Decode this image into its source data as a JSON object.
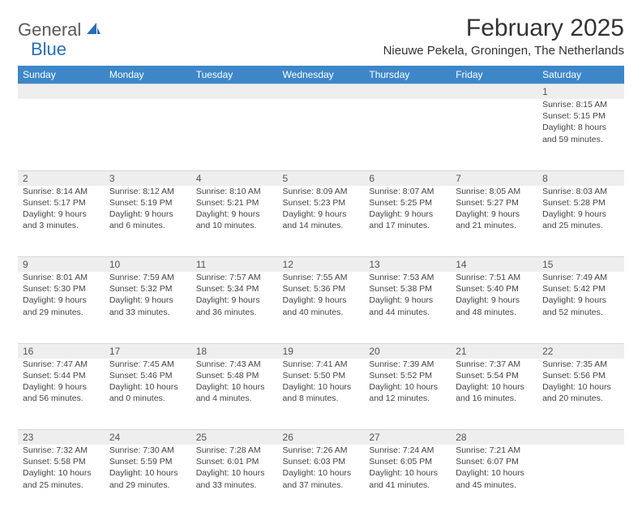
{
  "header": {
    "logo_general": "General",
    "logo_blue": "Blue",
    "month_title": "February 2025",
    "location": "Nieuwe Pekela, Groningen, The Netherlands"
  },
  "colors": {
    "header_bar": "#3d87c9",
    "daynum_bg": "#eeeeee",
    "logo_blue": "#2a6db8",
    "text": "#333333"
  },
  "day_names": [
    "Sunday",
    "Monday",
    "Tuesday",
    "Wednesday",
    "Thursday",
    "Friday",
    "Saturday"
  ],
  "weeks": [
    [
      null,
      null,
      null,
      null,
      null,
      null,
      {
        "n": "1",
        "sr": "Sunrise: 8:15 AM",
        "ss": "Sunset: 5:15 PM",
        "dl": "Daylight: 8 hours and 59 minutes."
      }
    ],
    [
      {
        "n": "2",
        "sr": "Sunrise: 8:14 AM",
        "ss": "Sunset: 5:17 PM",
        "dl": "Daylight: 9 hours and 3 minutes."
      },
      {
        "n": "3",
        "sr": "Sunrise: 8:12 AM",
        "ss": "Sunset: 5:19 PM",
        "dl": "Daylight: 9 hours and 6 minutes."
      },
      {
        "n": "4",
        "sr": "Sunrise: 8:10 AM",
        "ss": "Sunset: 5:21 PM",
        "dl": "Daylight: 9 hours and 10 minutes."
      },
      {
        "n": "5",
        "sr": "Sunrise: 8:09 AM",
        "ss": "Sunset: 5:23 PM",
        "dl": "Daylight: 9 hours and 14 minutes."
      },
      {
        "n": "6",
        "sr": "Sunrise: 8:07 AM",
        "ss": "Sunset: 5:25 PM",
        "dl": "Daylight: 9 hours and 17 minutes."
      },
      {
        "n": "7",
        "sr": "Sunrise: 8:05 AM",
        "ss": "Sunset: 5:27 PM",
        "dl": "Daylight: 9 hours and 21 minutes."
      },
      {
        "n": "8",
        "sr": "Sunrise: 8:03 AM",
        "ss": "Sunset: 5:28 PM",
        "dl": "Daylight: 9 hours and 25 minutes."
      }
    ],
    [
      {
        "n": "9",
        "sr": "Sunrise: 8:01 AM",
        "ss": "Sunset: 5:30 PM",
        "dl": "Daylight: 9 hours and 29 minutes."
      },
      {
        "n": "10",
        "sr": "Sunrise: 7:59 AM",
        "ss": "Sunset: 5:32 PM",
        "dl": "Daylight: 9 hours and 33 minutes."
      },
      {
        "n": "11",
        "sr": "Sunrise: 7:57 AM",
        "ss": "Sunset: 5:34 PM",
        "dl": "Daylight: 9 hours and 36 minutes."
      },
      {
        "n": "12",
        "sr": "Sunrise: 7:55 AM",
        "ss": "Sunset: 5:36 PM",
        "dl": "Daylight: 9 hours and 40 minutes."
      },
      {
        "n": "13",
        "sr": "Sunrise: 7:53 AM",
        "ss": "Sunset: 5:38 PM",
        "dl": "Daylight: 9 hours and 44 minutes."
      },
      {
        "n": "14",
        "sr": "Sunrise: 7:51 AM",
        "ss": "Sunset: 5:40 PM",
        "dl": "Daylight: 9 hours and 48 minutes."
      },
      {
        "n": "15",
        "sr": "Sunrise: 7:49 AM",
        "ss": "Sunset: 5:42 PM",
        "dl": "Daylight: 9 hours and 52 minutes."
      }
    ],
    [
      {
        "n": "16",
        "sr": "Sunrise: 7:47 AM",
        "ss": "Sunset: 5:44 PM",
        "dl": "Daylight: 9 hours and 56 minutes."
      },
      {
        "n": "17",
        "sr": "Sunrise: 7:45 AM",
        "ss": "Sunset: 5:46 PM",
        "dl": "Daylight: 10 hours and 0 minutes."
      },
      {
        "n": "18",
        "sr": "Sunrise: 7:43 AM",
        "ss": "Sunset: 5:48 PM",
        "dl": "Daylight: 10 hours and 4 minutes."
      },
      {
        "n": "19",
        "sr": "Sunrise: 7:41 AM",
        "ss": "Sunset: 5:50 PM",
        "dl": "Daylight: 10 hours and 8 minutes."
      },
      {
        "n": "20",
        "sr": "Sunrise: 7:39 AM",
        "ss": "Sunset: 5:52 PM",
        "dl": "Daylight: 10 hours and 12 minutes."
      },
      {
        "n": "21",
        "sr": "Sunrise: 7:37 AM",
        "ss": "Sunset: 5:54 PM",
        "dl": "Daylight: 10 hours and 16 minutes."
      },
      {
        "n": "22",
        "sr": "Sunrise: 7:35 AM",
        "ss": "Sunset: 5:56 PM",
        "dl": "Daylight: 10 hours and 20 minutes."
      }
    ],
    [
      {
        "n": "23",
        "sr": "Sunrise: 7:32 AM",
        "ss": "Sunset: 5:58 PM",
        "dl": "Daylight: 10 hours and 25 minutes."
      },
      {
        "n": "24",
        "sr": "Sunrise: 7:30 AM",
        "ss": "Sunset: 5:59 PM",
        "dl": "Daylight: 10 hours and 29 minutes."
      },
      {
        "n": "25",
        "sr": "Sunrise: 7:28 AM",
        "ss": "Sunset: 6:01 PM",
        "dl": "Daylight: 10 hours and 33 minutes."
      },
      {
        "n": "26",
        "sr": "Sunrise: 7:26 AM",
        "ss": "Sunset: 6:03 PM",
        "dl": "Daylight: 10 hours and 37 minutes."
      },
      {
        "n": "27",
        "sr": "Sunrise: 7:24 AM",
        "ss": "Sunset: 6:05 PM",
        "dl": "Daylight: 10 hours and 41 minutes."
      },
      {
        "n": "28",
        "sr": "Sunrise: 7:21 AM",
        "ss": "Sunset: 6:07 PM",
        "dl": "Daylight: 10 hours and 45 minutes."
      },
      null
    ]
  ]
}
